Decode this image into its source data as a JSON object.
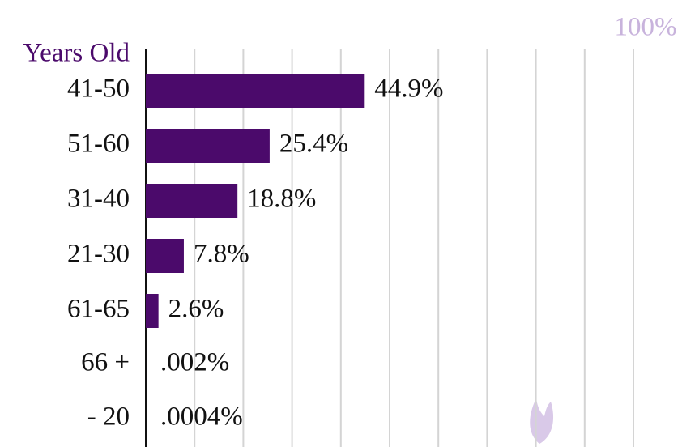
{
  "chart_data": {
    "type": "barh",
    "y_label": "Years Old",
    "categories": [
      "41-50",
      "51-60",
      "31-40",
      "21-30",
      "61-65",
      "66 +",
      "- 20"
    ],
    "values": [
      44.9,
      25.4,
      18.8,
      7.8,
      2.6,
      0.002,
      0.0004
    ],
    "value_labels": [
      "44.9%",
      "25.4%",
      "18.8%",
      "7.8%",
      "2.6%",
      ".002%",
      ".0004%"
    ],
    "color": "#4b0a6b",
    "xlim": [
      0,
      100
    ],
    "xticks": [
      10,
      20,
      30,
      40,
      50,
      60,
      70,
      80,
      90,
      {
        "value": 100,
        "label": "100%"
      }
    ],
    "grid": true
  }
}
